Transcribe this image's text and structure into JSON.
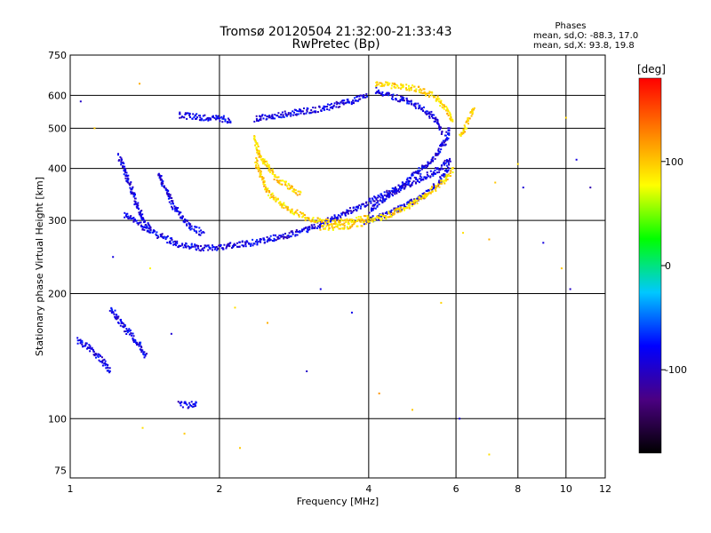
{
  "chart_data": {
    "type": "scatter",
    "title": "Tromsø 20120504 21:32:00-21:33:43",
    "subtitle": "RwPretec (Bp)",
    "xlabel": "Frequency [MHz]",
    "ylabel": "Stationary phase Virtual Height [km]",
    "x_scale": "log",
    "y_scale": "log",
    "xlim": [
      1,
      12
    ],
    "ylim": [
      72,
      750
    ],
    "x_ticks": [
      1,
      2,
      4,
      6,
      8,
      10,
      12
    ],
    "y_ticks": [
      75,
      100,
      200,
      300,
      400,
      500,
      600,
      750
    ],
    "grid": true,
    "phase_info": {
      "heading": "Phases",
      "line_o": "mean, sd,O:  -88.3, 17.0",
      "line_x": "mean, sd,X:  93.8, 19.8"
    },
    "colorbar": {
      "unit": "[deg]",
      "range": [
        -180,
        180
      ],
      "ticks": [
        100,
        0,
        -100
      ],
      "colors": [
        "#000000",
        "#4b0082",
        "#0000ff",
        "#00c8ff",
        "#00ff00",
        "#ffff00",
        "#ff8000",
        "#ff0000"
      ]
    },
    "series": [
      {
        "description": "o-mode traces",
        "phase_deg": -88,
        "color": "#1a4dff",
        "segments": [
          {
            "f": [
              1.28,
              1.45,
              1.65,
              1.85,
              2.1,
              2.4,
              2.8,
              3.3,
              3.9,
              4.6,
              5.2,
              5.55,
              5.75
            ],
            "h": [
              312,
              283,
              263,
              258,
              262,
              268,
              279,
              300,
              330,
              360,
              385,
              400,
              420
            ]
          },
          {
            "f": [
              1.25,
              1.3,
              1.35,
              1.4,
              1.45
            ],
            "h": [
              430,
              380,
              335,
              300,
              285
            ]
          },
          {
            "f": [
              1.5,
              1.55,
              1.6,
              1.68,
              1.75,
              1.85
            ],
            "h": [
              390,
              360,
              330,
              305,
              290,
              280
            ]
          },
          {
            "f": [
              1.65,
              1.8,
              2.0,
              2.1
            ],
            "h": [
              540,
              535,
              530,
              525
            ]
          },
          {
            "f": [
              2.35,
              2.6,
              2.9,
              3.3,
              3.6,
              3.95
            ],
            "h": [
              530,
              540,
              550,
              565,
              580,
              600
            ]
          },
          {
            "f": [
              3.9,
              4.3,
              4.8,
              5.2,
              5.5,
              5.7,
              5.8
            ],
            "h": [
              300,
              310,
              330,
              350,
              370,
              390,
              420
            ]
          },
          {
            "f": [
              4.0,
              4.3,
              4.7,
              5.1,
              5.45,
              5.7,
              5.8
            ],
            "h": [
              320,
              340,
              370,
              400,
              430,
              470,
              500
            ]
          },
          {
            "f": [
              4.1,
              4.4,
              4.8,
              5.2,
              5.5,
              5.6
            ],
            "h": [
              620,
              600,
              580,
              555,
              520,
              490
            ]
          },
          {
            "f": [
              1.03,
              1.08,
              1.15,
              1.2
            ],
            "h": [
              155,
              150,
              140,
              130
            ]
          },
          {
            "f": [
              1.2,
              1.26,
              1.32,
              1.38,
              1.42
            ],
            "h": [
              185,
              170,
              160,
              150,
              142
            ]
          },
          {
            "f": [
              1.65,
              1.72,
              1.8
            ],
            "h": [
              110,
              108,
              110
            ]
          }
        ]
      },
      {
        "description": "x-mode traces",
        "phase_deg": 94,
        "color": "#ffe600",
        "segments": [
          {
            "f": [
              2.35,
              2.5,
              2.75,
              3.0,
              3.3,
              3.6,
              4.0
            ],
            "h": [
              420,
              350,
              320,
              305,
              298,
              300,
              305
            ]
          },
          {
            "f": [
              2.35,
              2.4,
              2.6,
              2.9
            ],
            "h": [
              480,
              430,
              380,
              350
            ]
          },
          {
            "f": [
              3.2,
              3.6,
              4.0,
              4.5,
              5.0,
              5.4,
              5.7,
              5.9
            ],
            "h": [
              290,
              292,
              300,
              315,
              335,
              360,
              380,
              400
            ]
          },
          {
            "f": [
              4.1,
              4.5,
              5.0,
              5.4,
              5.7,
              5.9
            ],
            "h": [
              640,
              635,
              625,
              600,
              560,
              520
            ]
          },
          {
            "f": [
              6.1,
              6.3,
              6.5
            ],
            "h": [
              480,
              520,
              560
            ]
          }
        ]
      }
    ],
    "scattered_points": [
      {
        "f": 1.12,
        "h": 500,
        "phase_deg": 100
      },
      {
        "f": 1.38,
        "h": 640,
        "phase_deg": 110
      },
      {
        "f": 1.05,
        "h": 580,
        "phase_deg": -100
      },
      {
        "f": 1.22,
        "h": 245,
        "phase_deg": -90
      },
      {
        "f": 1.45,
        "h": 230,
        "phase_deg": 80
      },
      {
        "f": 1.6,
        "h": 160,
        "phase_deg": -95
      },
      {
        "f": 2.15,
        "h": 185,
        "phase_deg": 90
      },
      {
        "f": 2.5,
        "h": 170,
        "phase_deg": 110
      },
      {
        "f": 3.2,
        "h": 205,
        "phase_deg": -90
      },
      {
        "f": 3.7,
        "h": 180,
        "phase_deg": -85
      },
      {
        "f": 3.0,
        "h": 130,
        "phase_deg": -100
      },
      {
        "f": 4.2,
        "h": 115,
        "phase_deg": 120
      },
      {
        "f": 4.9,
        "h": 105,
        "phase_deg": 100
      },
      {
        "f": 5.6,
        "h": 190,
        "phase_deg": 95
      },
      {
        "f": 6.1,
        "h": 100,
        "phase_deg": -90
      },
      {
        "f": 6.2,
        "h": 280,
        "phase_deg": 90
      },
      {
        "f": 7.0,
        "h": 270,
        "phase_deg": 110
      },
      {
        "f": 7.2,
        "h": 370,
        "phase_deg": 100
      },
      {
        "f": 8.0,
        "h": 410,
        "phase_deg": 90
      },
      {
        "f": 8.2,
        "h": 360,
        "phase_deg": -95
      },
      {
        "f": 9.0,
        "h": 265,
        "phase_deg": -90
      },
      {
        "f": 10.2,
        "h": 205,
        "phase_deg": -100
      },
      {
        "f": 10.5,
        "h": 420,
        "phase_deg": -90
      },
      {
        "f": 11.2,
        "h": 360,
        "phase_deg": -110
      },
      {
        "f": 9.8,
        "h": 230,
        "phase_deg": 100
      },
      {
        "f": 10.0,
        "h": 530,
        "phase_deg": 95
      },
      {
        "f": 7.0,
        "h": 82,
        "phase_deg": 90
      },
      {
        "f": 1.7,
        "h": 92,
        "phase_deg": 100
      },
      {
        "f": 1.4,
        "h": 95,
        "phase_deg": 90
      },
      {
        "f": 2.2,
        "h": 85,
        "phase_deg": 100
      }
    ]
  }
}
